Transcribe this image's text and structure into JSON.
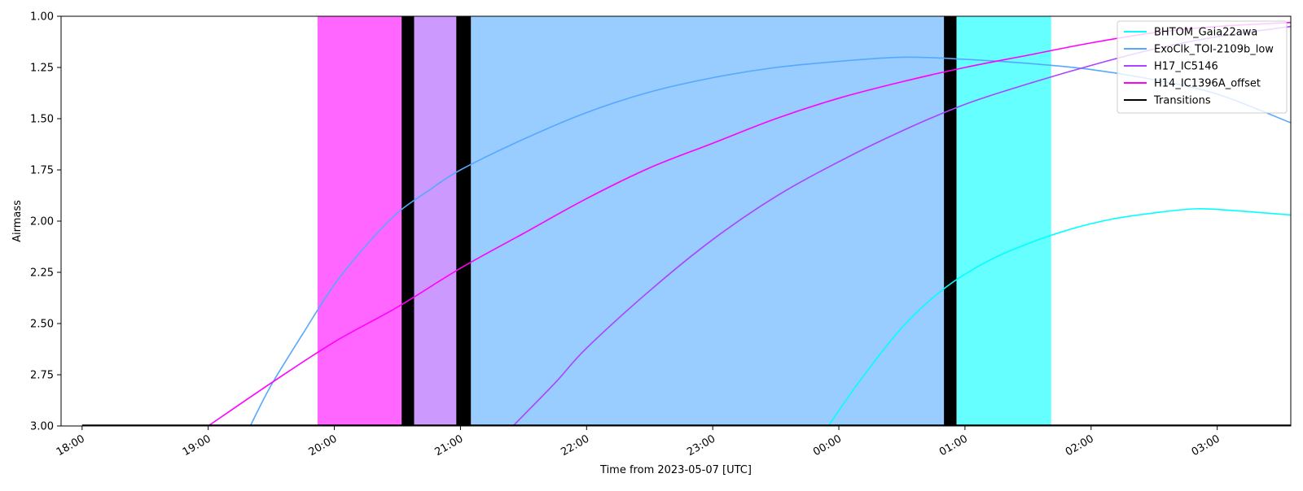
{
  "chart_data": {
    "type": "line",
    "xlabel": "Time from 2023-05-07 [UTC]",
    "ylabel": "Airmass",
    "x_range": [
      "2023-05-07T17:50",
      "2023-05-08T03:35"
    ],
    "ylim": [
      3.0,
      1.0
    ],
    "y_inverted": true,
    "y_ticks": [
      1.0,
      1.25,
      1.5,
      1.75,
      2.0,
      2.25,
      2.5,
      2.75,
      3.0
    ],
    "y_tick_labels": [
      "1.00",
      "1.25",
      "1.50",
      "1.75",
      "2.00",
      "2.25",
      "2.50",
      "2.75",
      "3.00"
    ],
    "x_ticks": [
      "2023-05-07T18:00",
      "2023-05-07T19:00",
      "2023-05-07T20:00",
      "2023-05-07T21:00",
      "2023-05-07T22:00",
      "2023-05-07T23:00",
      "2023-05-08T00:00",
      "2023-05-08T01:00",
      "2023-05-08T02:00",
      "2023-05-08T03:00"
    ],
    "x_tick_labels": [
      "18:00",
      "19:00",
      "20:00",
      "21:00",
      "22:00",
      "23:00",
      "00:00",
      "01:00",
      "02:00",
      "03:00"
    ],
    "legend_position": "top-right",
    "grid": false,
    "schedule_blocks": [
      {
        "target": "H14_IC1396A_offset",
        "start": "2023-05-07T19:52",
        "end": "2023-05-07T20:32",
        "color": "#ff66ff"
      },
      {
        "target": "Transitions",
        "start": "2023-05-07T20:32",
        "end": "2023-05-07T20:38",
        "color": "#000000"
      },
      {
        "target": "H17_IC5146",
        "start": "2023-05-07T20:38",
        "end": "2023-05-07T20:58",
        "color": "#cc99ff"
      },
      {
        "target": "Transitions",
        "start": "2023-05-07T20:58",
        "end": "2023-05-07T21:05",
        "color": "#000000"
      },
      {
        "target": "ExoClk_TOI-2109b_low",
        "start": "2023-05-07T21:05",
        "end": "2023-05-08T00:50",
        "color": "#99ccff"
      },
      {
        "target": "Transitions",
        "start": "2023-05-08T00:50",
        "end": "2023-05-08T00:56",
        "color": "#000000"
      },
      {
        "target": "BHTOM_Gaia22awa",
        "start": "2023-05-08T00:56",
        "end": "2023-05-08T01:41",
        "color": "#66ffff"
      }
    ],
    "series": [
      {
        "name": "BHTOM_Gaia22awa",
        "color": "#00ffff",
        "x": [
          "2023-05-07T23:55",
          "2023-05-08T00:10",
          "2023-05-08T00:30",
          "2023-05-08T00:50",
          "2023-05-08T01:10",
          "2023-05-08T01:30",
          "2023-05-08T01:50",
          "2023-05-08T02:10",
          "2023-05-08T02:30",
          "2023-05-08T02:50",
          "2023-05-08T03:10",
          "2023-05-08T03:35"
        ],
        "y": [
          3.0,
          2.78,
          2.52,
          2.33,
          2.2,
          2.11,
          2.04,
          1.99,
          1.96,
          1.94,
          1.95,
          1.97
        ]
      },
      {
        "name": "ExoClk_TOI-2109b_low",
        "color": "#56a8ff",
        "x": [
          "2023-05-07T19:20",
          "2023-05-07T19:30",
          "2023-05-07T19:45",
          "2023-05-07T20:00",
          "2023-05-07T20:15",
          "2023-05-07T20:30",
          "2023-05-07T20:45",
          "2023-05-07T21:00",
          "2023-05-07T21:30",
          "2023-05-07T22:00",
          "2023-05-07T22:30",
          "2023-05-07T23:00",
          "2023-05-07T23:30",
          "2023-05-08T00:00",
          "2023-05-08T00:30",
          "2023-05-08T01:00",
          "2023-05-08T01:30",
          "2023-05-08T02:00",
          "2023-05-08T02:30",
          "2023-05-08T03:00",
          "2023-05-08T03:35"
        ],
        "y": [
          3.0,
          2.8,
          2.55,
          2.31,
          2.12,
          1.96,
          1.85,
          1.75,
          1.6,
          1.47,
          1.37,
          1.3,
          1.25,
          1.22,
          1.2,
          1.21,
          1.23,
          1.26,
          1.31,
          1.38,
          1.52
        ]
      },
      {
        "name": "H17_IC5146",
        "color": "#aa44ff",
        "x": [
          "2023-05-07T21:25",
          "2023-05-07T21:45",
          "2023-05-07T22:00",
          "2023-05-07T22:30",
          "2023-05-07T23:00",
          "2023-05-07T23:30",
          "2023-05-08T00:00",
          "2023-05-08T00:30",
          "2023-05-08T01:00",
          "2023-05-08T01:30",
          "2023-05-08T02:00",
          "2023-05-08T02:30",
          "2023-05-08T03:00",
          "2023-05-08T03:35"
        ],
        "y": [
          3.0,
          2.79,
          2.62,
          2.34,
          2.09,
          1.88,
          1.71,
          1.56,
          1.43,
          1.33,
          1.24,
          1.16,
          1.1,
          1.05
        ]
      },
      {
        "name": "H14_IC1396A_offset",
        "color": "#ff00ff",
        "x": [
          "2023-05-07T19:00",
          "2023-05-07T19:30",
          "2023-05-07T20:00",
          "2023-05-07T20:30",
          "2023-05-07T21:00",
          "2023-05-07T21:30",
          "2023-05-07T22:00",
          "2023-05-07T22:30",
          "2023-05-07T23:00",
          "2023-05-07T23:30",
          "2023-05-08T00:00",
          "2023-05-08T00:30",
          "2023-05-08T01:00",
          "2023-05-08T01:30",
          "2023-05-08T02:00",
          "2023-05-08T02:30",
          "2023-05-08T03:00",
          "2023-05-08T03:35"
        ],
        "y": [
          3.0,
          2.79,
          2.59,
          2.42,
          2.23,
          2.06,
          1.89,
          1.74,
          1.62,
          1.5,
          1.4,
          1.32,
          1.25,
          1.19,
          1.13,
          1.08,
          1.05,
          1.03
        ]
      },
      {
        "name": "Transitions",
        "color": "#000000",
        "x": [],
        "y": []
      }
    ]
  }
}
